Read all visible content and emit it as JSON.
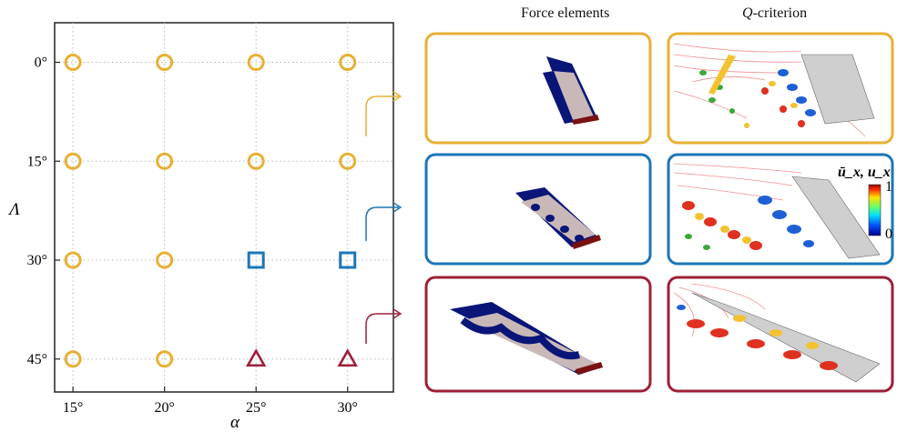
{
  "colors": {
    "yellow": "#E7B034",
    "blue": "#1B76B8",
    "red": "#9E1F36",
    "axis": "#222222",
    "grid": "#b8b8b8"
  },
  "column_titles": {
    "force": "Force elements",
    "q_prefix": "Q",
    "q_suffix": "-criterion"
  },
  "axes": {
    "xlabel": "α",
    "ylabel": "Λ"
  },
  "colorbar": {
    "label": "ū_x, u_x",
    "max_label": "1",
    "min_label": "0"
  },
  "chart_data": {
    "type": "scatter",
    "xlabel": "α",
    "ylabel": "Λ",
    "x_ticks": [
      "15°",
      "20°",
      "25°",
      "30°"
    ],
    "y_ticks": [
      "0°",
      "15°",
      "30°",
      "45°"
    ],
    "xlim": [
      14,
      32.5
    ],
    "ylim": [
      -6,
      50
    ],
    "y_inverted": true,
    "grid": true,
    "points": [
      {
        "x": 15,
        "y": 0,
        "marker": "circle",
        "color": "#E7B034"
      },
      {
        "x": 20,
        "y": 0,
        "marker": "circle",
        "color": "#E7B034"
      },
      {
        "x": 25,
        "y": 0,
        "marker": "circle",
        "color": "#E7B034"
      },
      {
        "x": 30,
        "y": 0,
        "marker": "circle",
        "color": "#E7B034"
      },
      {
        "x": 15,
        "y": 15,
        "marker": "circle",
        "color": "#E7B034"
      },
      {
        "x": 20,
        "y": 15,
        "marker": "circle",
        "color": "#E7B034"
      },
      {
        "x": 25,
        "y": 15,
        "marker": "circle",
        "color": "#E7B034"
      },
      {
        "x": 30,
        "y": 15,
        "marker": "circle",
        "color": "#E7B034"
      },
      {
        "x": 15,
        "y": 30,
        "marker": "circle",
        "color": "#E7B034"
      },
      {
        "x": 20,
        "y": 30,
        "marker": "circle",
        "color": "#E7B034"
      },
      {
        "x": 25,
        "y": 30,
        "marker": "square",
        "color": "#1B76B8"
      },
      {
        "x": 30,
        "y": 30,
        "marker": "square",
        "color": "#1B76B8"
      },
      {
        "x": 15,
        "y": 45,
        "marker": "circle",
        "color": "#E7B034"
      },
      {
        "x": 20,
        "y": 45,
        "marker": "circle",
        "color": "#E7B034"
      },
      {
        "x": 25,
        "y": 45,
        "marker": "triangle",
        "color": "#9E1F36"
      },
      {
        "x": 30,
        "y": 45,
        "marker": "triangle",
        "color": "#9E1F36"
      }
    ],
    "highlighted": [
      {
        "x": 30,
        "y": 15,
        "color": "#E7B034"
      },
      {
        "x": 30,
        "y": 30,
        "color": "#1B76B8"
      },
      {
        "x": 30,
        "y": 45,
        "color": "#9E1F36"
      }
    ]
  },
  "panel_rows": [
    {
      "color": "#E7B034",
      "case": "α=30°, Λ=15°"
    },
    {
      "color": "#1B76B8",
      "case": "α=30°, Λ=30°"
    },
    {
      "color": "#9E1F36",
      "case": "α=30°, Λ=45°"
    }
  ]
}
